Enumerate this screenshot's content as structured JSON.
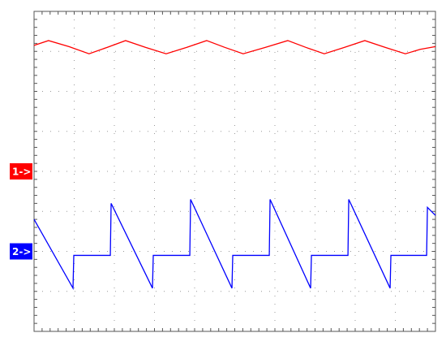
{
  "chart_data": {
    "type": "line",
    "xlim": [
      0,
      10
    ],
    "ylim": [
      0,
      8
    ],
    "xticks": [
      0,
      1,
      2,
      3,
      4,
      5,
      6,
      7,
      8,
      9,
      10
    ],
    "yticks": [
      0,
      1,
      2,
      3,
      4,
      5,
      6,
      7,
      8
    ],
    "grid": true,
    "series": [
      {
        "color": "#ff0000",
        "x": [
          0,
          0.36,
          0.87,
          1.37,
          1.82,
          2.28,
          2.78,
          3.29,
          3.8,
          4.3,
          4.75,
          5.21,
          5.76,
          6.32,
          6.77,
          7.23,
          7.73,
          8.24,
          8.75,
          9.25,
          9.62,
          10
        ],
        "values": [
          7.15,
          7.27,
          7.12,
          6.94,
          7.1,
          7.27,
          7.1,
          6.94,
          7.1,
          7.27,
          7.1,
          6.94,
          7.1,
          7.27,
          7.1,
          6.94,
          7.1,
          7.27,
          7.1,
          6.94,
          7.05,
          7.12
        ]
      },
      {
        "color": "#0000ff",
        "x": [
          0,
          0.97,
          0.99,
          1.9,
          1.92,
          2.95,
          2.97,
          3.88,
          3.9,
          4.93,
          4.95,
          5.86,
          5.88,
          6.89,
          6.91,
          7.82,
          7.84,
          8.87,
          8.89,
          9.78,
          9.8,
          10
        ],
        "values": [
          2.8,
          1.08,
          1.9,
          1.9,
          3.2,
          1.08,
          1.9,
          1.9,
          3.3,
          1.08,
          1.9,
          1.9,
          3.3,
          1.08,
          1.9,
          1.9,
          3.3,
          1.08,
          1.9,
          1.9,
          3.1,
          2.9
        ]
      }
    ],
    "markers": [
      {
        "label": "1->",
        "value": 4,
        "color": "#ff0000"
      },
      {
        "label": "2->",
        "value": 2,
        "color": "#0000ff"
      }
    ]
  }
}
